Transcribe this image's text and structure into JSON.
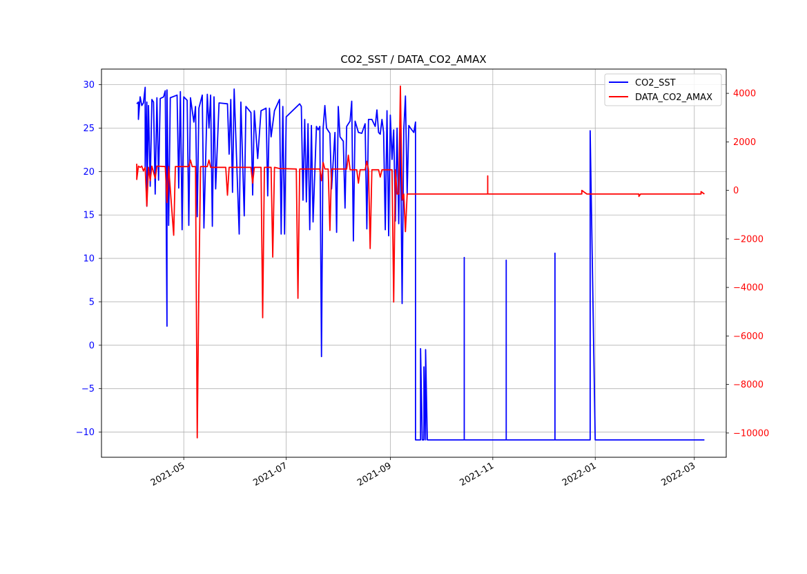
{
  "chart_data": {
    "type": "line",
    "title": "CO2_SST / DATA_CO2_AMAX",
    "xlabel": "",
    "ylabel_left": "",
    "ylabel_right": "",
    "grid": true,
    "legend_position": "upper-right",
    "x_axis": {
      "type": "date",
      "range": [
        "2021-03-13",
        "2022-03-20"
      ],
      "ticks": [
        "2021-05-01",
        "2021-07-01",
        "2021-09-01",
        "2021-11-01",
        "2022-01-01",
        "2022-03-01"
      ],
      "tick_labels": [
        "2021-05",
        "2021-07",
        "2021-09",
        "2021-11",
        "2022-01",
        "2022-03"
      ]
    },
    "y_left": {
      "range": [
        -12.9,
        31.8
      ],
      "ticks": [
        -10,
        -5,
        0,
        5,
        10,
        15,
        20,
        25,
        30
      ],
      "tick_labels": [
        "−10",
        "−5",
        "0",
        "5",
        "10",
        "15",
        "20",
        "25",
        "30"
      ],
      "color": "#0000ff"
    },
    "y_right": {
      "range": [
        -11000,
        5000
      ],
      "ticks": [
        -10000,
        -8000,
        -6000,
        -4000,
        -2000,
        0,
        2000,
        4000
      ],
      "tick_labels": [
        "−10000",
        "−8000",
        "−6000",
        "−4000",
        "−2000",
        "0",
        "2000",
        "4000"
      ],
      "color": "#ff0000"
    },
    "series": [
      {
        "name": "CO2_SST",
        "axis": "left",
        "color": "#0000ff",
        "points": [
          [
            "2021-04-03",
            27.8
          ],
          [
            "2021-04-04",
            28.0
          ],
          [
            "2021-04-04",
            26.0
          ],
          [
            "2021-04-05",
            28.6
          ],
          [
            "2021-04-06",
            27.6
          ],
          [
            "2021-04-07",
            27.9
          ],
          [
            "2021-04-08",
            29.7
          ],
          [
            "2021-04-08",
            20.5
          ],
          [
            "2021-04-09",
            28.0
          ],
          [
            "2021-04-09",
            16.0
          ],
          [
            "2021-04-10",
            27.6
          ],
          [
            "2021-04-11",
            18.3
          ],
          [
            "2021-04-12",
            28.3
          ],
          [
            "2021-04-13",
            28.0
          ],
          [
            "2021-04-14",
            17.4
          ],
          [
            "2021-04-15",
            28.5
          ],
          [
            "2021-04-16",
            19.0
          ],
          [
            "2021-04-17",
            28.4
          ],
          [
            "2021-04-19",
            28.6
          ],
          [
            "2021-04-20",
            29.3
          ],
          [
            "2021-04-21",
            2.2
          ],
          [
            "2021-04-21",
            29.4
          ],
          [
            "2021-04-22",
            13.8
          ],
          [
            "2021-04-23",
            28.5
          ],
          [
            "2021-04-27",
            28.8
          ],
          [
            "2021-04-28",
            18.1
          ],
          [
            "2021-04-29",
            29.2
          ],
          [
            "2021-04-30",
            13.3
          ],
          [
            "2021-05-01",
            28.6
          ],
          [
            "2021-05-03",
            28.2
          ],
          [
            "2021-05-04",
            13.8
          ],
          [
            "2021-05-05",
            28.5
          ],
          [
            "2021-05-07",
            25.7
          ],
          [
            "2021-05-08",
            27.5
          ],
          [
            "2021-05-09",
            14.8
          ],
          [
            "2021-05-10",
            27.3
          ],
          [
            "2021-05-12",
            28.8
          ],
          [
            "2021-05-13",
            13.5
          ],
          [
            "2021-05-15",
            28.9
          ],
          [
            "2021-05-16",
            25.0
          ],
          [
            "2021-05-17",
            28.8
          ],
          [
            "2021-05-18",
            13.7
          ],
          [
            "2021-05-19",
            28.6
          ],
          [
            "2021-05-20",
            18.0
          ],
          [
            "2021-05-22",
            27.9
          ],
          [
            "2021-05-27",
            27.8
          ],
          [
            "2021-05-28",
            22.0
          ],
          [
            "2021-05-29",
            28.3
          ],
          [
            "2021-05-30",
            17.6
          ],
          [
            "2021-05-31",
            29.5
          ],
          [
            "2021-06-03",
            12.8
          ],
          [
            "2021-06-04",
            28.0
          ],
          [
            "2021-06-06",
            14.9
          ],
          [
            "2021-06-07",
            27.5
          ],
          [
            "2021-06-10",
            26.8
          ],
          [
            "2021-06-11",
            17.3
          ],
          [
            "2021-06-12",
            27.0
          ],
          [
            "2021-06-14",
            21.5
          ],
          [
            "2021-06-16",
            27.0
          ],
          [
            "2021-06-19",
            27.3
          ],
          [
            "2021-06-20",
            17.2
          ],
          [
            "2021-06-21",
            27.3
          ],
          [
            "2021-06-22",
            24.0
          ],
          [
            "2021-06-24",
            27.0
          ],
          [
            "2021-06-27",
            28.3
          ],
          [
            "2021-06-28",
            12.8
          ],
          [
            "2021-06-29",
            27.5
          ],
          [
            "2021-06-30",
            12.8
          ],
          [
            "2021-07-01",
            26.3
          ],
          [
            "2021-07-09",
            27.8
          ],
          [
            "2021-07-10",
            27.5
          ],
          [
            "2021-07-11",
            16.7
          ],
          [
            "2021-07-12",
            26.0
          ],
          [
            "2021-07-13",
            16.5
          ],
          [
            "2021-07-14",
            25.5
          ],
          [
            "2021-07-15",
            13.3
          ],
          [
            "2021-07-16",
            25.3
          ],
          [
            "2021-07-17",
            14.2
          ],
          [
            "2021-07-19",
            25.2
          ],
          [
            "2021-07-20",
            24.8
          ],
          [
            "2021-07-21",
            25.2
          ],
          [
            "2021-07-22",
            -1.3
          ],
          [
            "2021-07-23",
            25.0
          ],
          [
            "2021-07-24",
            27.6
          ],
          [
            "2021-07-25",
            25.0
          ],
          [
            "2021-07-27",
            24.4
          ],
          [
            "2021-07-28",
            18.0
          ],
          [
            "2021-07-30",
            24.5
          ],
          [
            "2021-07-31",
            13.0
          ],
          [
            "2021-08-01",
            27.5
          ],
          [
            "2021-08-02",
            24.0
          ],
          [
            "2021-08-04",
            23.5
          ],
          [
            "2021-08-05",
            15.8
          ],
          [
            "2021-08-06",
            25.2
          ],
          [
            "2021-08-08",
            25.8
          ],
          [
            "2021-08-09",
            28.1
          ],
          [
            "2021-08-10",
            12.0
          ],
          [
            "2021-08-11",
            25.8
          ],
          [
            "2021-08-13",
            24.5
          ],
          [
            "2021-08-15",
            24.4
          ],
          [
            "2021-08-17",
            25.5
          ],
          [
            "2021-08-18",
            13.4
          ],
          [
            "2021-08-19",
            26.0
          ],
          [
            "2021-08-21",
            26.0
          ],
          [
            "2021-08-23",
            25.2
          ],
          [
            "2021-08-24",
            27.1
          ],
          [
            "2021-08-25",
            24.5
          ],
          [
            "2021-08-26",
            24.3
          ],
          [
            "2021-08-27",
            26.0
          ],
          [
            "2021-08-28",
            24.5
          ],
          [
            "2021-08-29",
            13.3
          ],
          [
            "2021-08-30",
            27.0
          ],
          [
            "2021-08-31",
            12.6
          ],
          [
            "2021-09-01",
            26.5
          ],
          [
            "2021-09-02",
            21.4
          ],
          [
            "2021-09-03",
            24.8
          ],
          [
            "2021-09-04",
            14.3
          ],
          [
            "2021-09-05",
            25.0
          ],
          [
            "2021-09-06",
            14.0
          ],
          [
            "2021-09-07",
            25.2
          ],
          [
            "2021-09-08",
            4.8
          ],
          [
            "2021-09-09",
            24.8
          ],
          [
            "2021-09-10",
            28.7
          ],
          [
            "2021-09-11",
            17.5
          ],
          [
            "2021-09-12",
            25.3
          ],
          [
            "2021-09-13",
            25.0
          ],
          [
            "2021-09-15",
            24.5
          ],
          [
            "2021-09-16",
            25.7
          ],
          [
            "2021-09-16",
            -10.9
          ],
          [
            "2021-09-19",
            -10.9
          ],
          [
            "2021-09-19",
            -0.4
          ],
          [
            "2021-09-20",
            -10.9
          ],
          [
            "2021-09-21",
            -10.9
          ],
          [
            "2021-09-21",
            -2.5
          ],
          [
            "2021-09-22",
            -10.9
          ],
          [
            "2021-09-22",
            -0.5
          ],
          [
            "2021-09-23",
            -10.9
          ],
          [
            "2021-10-15",
            -10.9
          ],
          [
            "2021-10-15",
            10.1
          ],
          [
            "2021-10-15",
            -10.9
          ],
          [
            "2021-11-09",
            -10.9
          ],
          [
            "2021-11-09",
            9.8
          ],
          [
            "2021-11-09",
            -10.9
          ],
          [
            "2021-12-08",
            -10.9
          ],
          [
            "2021-12-08",
            10.6
          ],
          [
            "2021-12-08",
            -10.9
          ],
          [
            "2021-12-29",
            -10.9
          ],
          [
            "2021-12-29",
            24.7
          ],
          [
            "2022-01-01",
            -10.9
          ],
          [
            "2022-03-07",
            -10.9
          ]
        ]
      },
      {
        "name": "DATA_CO2_AMAX",
        "axis": "right",
        "color": "#ff0000",
        "points": [
          [
            "2021-04-03",
            1100
          ],
          [
            "2021-04-03",
            450
          ],
          [
            "2021-04-04",
            1000
          ],
          [
            "2021-04-05",
            950
          ],
          [
            "2021-04-06",
            1000
          ],
          [
            "2021-04-07",
            800
          ],
          [
            "2021-04-08",
            950
          ],
          [
            "2021-04-09",
            -650
          ],
          [
            "2021-04-10",
            950
          ],
          [
            "2021-04-11",
            400
          ],
          [
            "2021-04-12",
            1000
          ],
          [
            "2021-04-14",
            500
          ],
          [
            "2021-04-15",
            1000
          ],
          [
            "2021-04-20",
            980
          ],
          [
            "2021-04-21",
            -500
          ],
          [
            "2021-04-22",
            980
          ],
          [
            "2021-04-25",
            -1850
          ],
          [
            "2021-04-26",
            980
          ],
          [
            "2021-05-01",
            980
          ],
          [
            "2021-05-04",
            980
          ],
          [
            "2021-05-05",
            1250
          ],
          [
            "2021-05-06",
            980
          ],
          [
            "2021-05-08",
            980
          ],
          [
            "2021-05-09",
            -10200
          ],
          [
            "2021-05-10",
            -3900
          ],
          [
            "2021-05-11",
            980
          ],
          [
            "2021-05-15",
            980
          ],
          [
            "2021-05-16",
            1250
          ],
          [
            "2021-05-17",
            950
          ],
          [
            "2021-05-26",
            950
          ],
          [
            "2021-05-27",
            -200
          ],
          [
            "2021-05-28",
            950
          ],
          [
            "2021-06-10",
            950
          ],
          [
            "2021-06-11",
            300
          ],
          [
            "2021-06-12",
            950
          ],
          [
            "2021-06-16",
            950
          ],
          [
            "2021-06-17",
            -5250
          ],
          [
            "2021-06-18",
            950
          ],
          [
            "2021-06-22",
            950
          ],
          [
            "2021-06-23",
            -2750
          ],
          [
            "2021-06-24",
            950
          ],
          [
            "2021-06-27",
            900
          ],
          [
            "2021-07-07",
            880
          ],
          [
            "2021-07-08",
            -4450
          ],
          [
            "2021-07-09",
            880
          ],
          [
            "2021-07-21",
            880
          ],
          [
            "2021-07-22",
            400
          ],
          [
            "2021-07-23",
            1150
          ],
          [
            "2021-07-24",
            880
          ],
          [
            "2021-07-26",
            880
          ],
          [
            "2021-07-27",
            -1650
          ],
          [
            "2021-07-28",
            880
          ],
          [
            "2021-08-06",
            880
          ],
          [
            "2021-08-07",
            1450
          ],
          [
            "2021-08-08",
            850
          ],
          [
            "2021-08-12",
            850
          ],
          [
            "2021-08-13",
            300
          ],
          [
            "2021-08-14",
            850
          ],
          [
            "2021-08-17",
            850
          ],
          [
            "2021-08-18",
            1200
          ],
          [
            "2021-08-19",
            850
          ],
          [
            "2021-08-20",
            -2400
          ],
          [
            "2021-08-21",
            850
          ],
          [
            "2021-08-25",
            850
          ],
          [
            "2021-08-26",
            550
          ],
          [
            "2021-08-27",
            850
          ],
          [
            "2021-09-02",
            850
          ],
          [
            "2021-09-03",
            -4600
          ],
          [
            "2021-09-04",
            850
          ],
          [
            "2021-09-05",
            -150
          ],
          [
            "2021-09-06",
            -150
          ],
          [
            "2021-09-07",
            4300
          ],
          [
            "2021-09-08",
            -400
          ],
          [
            "2021-09-09",
            -150
          ],
          [
            "2021-09-10",
            -1700
          ],
          [
            "2021-09-11",
            -150
          ],
          [
            "2021-10-29",
            -150
          ],
          [
            "2021-10-29",
            600
          ],
          [
            "2021-10-29",
            -150
          ],
          [
            "2021-12-24",
            -150
          ],
          [
            "2021-12-24",
            0
          ],
          [
            "2021-12-27",
            -150
          ],
          [
            "2022-01-27",
            -150
          ],
          [
            "2022-01-27",
            -250
          ],
          [
            "2022-01-28",
            -150
          ],
          [
            "2022-03-05",
            -150
          ],
          [
            "2022-03-05",
            -50
          ],
          [
            "2022-03-07",
            -150
          ]
        ]
      }
    ]
  }
}
